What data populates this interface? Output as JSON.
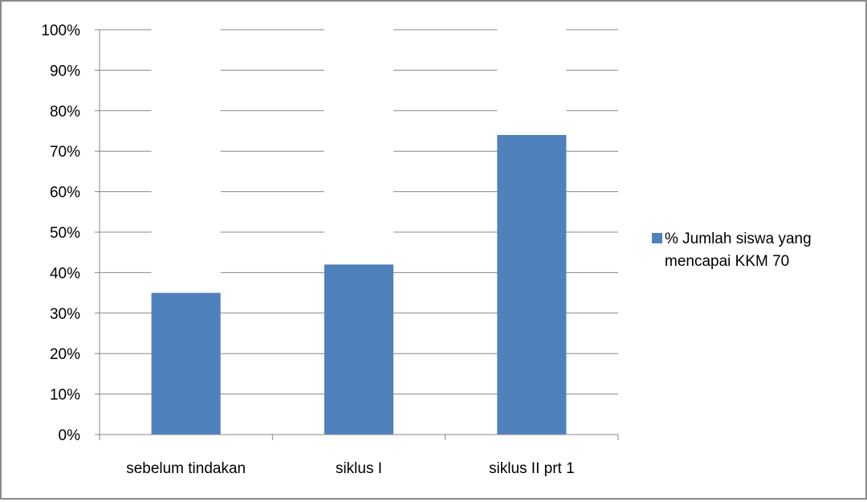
{
  "chart_data": {
    "type": "bar",
    "categories": [
      "sebelum tindakan",
      "siklus I",
      "siklus II prt 1"
    ],
    "series": [
      {
        "name": "% Jumlah siswa yang mencapai KKM 70",
        "values": [
          0.35,
          0.42,
          0.74
        ],
        "color": "#4f81bd"
      }
    ],
    "ylim": [
      0,
      1
    ],
    "yticks": [
      0,
      0.1,
      0.2,
      0.3,
      0.4,
      0.5,
      0.6,
      0.7,
      0.8,
      0.9,
      1.0
    ],
    "ytick_labels": [
      "0%",
      "10%",
      "20%",
      "30%",
      "40%",
      "50%",
      "60%",
      "70%",
      "80%",
      "90%",
      "100%"
    ],
    "grid": true,
    "legend_position": "right",
    "legend_lines": [
      "% Jumlah siswa yang",
      "mencapai KKM 70"
    ]
  }
}
